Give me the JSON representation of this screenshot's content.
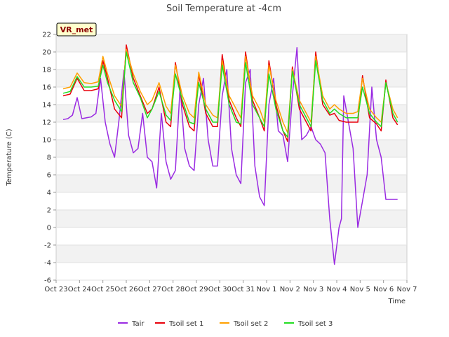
{
  "chart_data": {
    "type": "line",
    "title": "Soil Temperature at -4cm",
    "xlabel": "Time",
    "ylabel": "Temperature (C)",
    "badge": "VR_met",
    "ylim": [
      -6,
      22
    ],
    "yticks": [
      -6,
      -4,
      -2,
      0,
      2,
      4,
      6,
      8,
      10,
      12,
      14,
      16,
      18,
      20,
      22
    ],
    "xlim": [
      0,
      15
    ],
    "xticks": [
      0,
      1,
      2,
      3,
      4,
      5,
      6,
      7,
      8,
      9,
      10,
      11,
      12,
      13,
      14,
      15
    ],
    "xtick_labels": [
      "Oct 23",
      "Oct 24",
      "Oct 25",
      "Oct 26",
      "Oct 27",
      "Oct 28",
      "Oct 29",
      "Oct 30",
      "Oct 31",
      "Nov 1",
      "Nov 2",
      "Nov 3",
      "Nov 4",
      "Nov 5",
      "Nov 6",
      "Nov 7"
    ],
    "grid": "horizontal bands",
    "legend_position": "bottom",
    "series": [
      {
        "name": "Tair",
        "color": "#9a2be2",
        "x": [
          0.3,
          0.5,
          0.7,
          0.9,
          1.1,
          1.3,
          1.5,
          1.7,
          1.9,
          2.1,
          2.3,
          2.5,
          2.7,
          2.9,
          3.0,
          3.1,
          3.3,
          3.5,
          3.7,
          3.9,
          4.1,
          4.3,
          4.5,
          4.7,
          4.9,
          5.1,
          5.3,
          5.5,
          5.7,
          5.9,
          6.1,
          6.3,
          6.5,
          6.7,
          6.9,
          7.1,
          7.3,
          7.5,
          7.7,
          7.9,
          8.1,
          8.3,
          8.5,
          8.7,
          8.9,
          9.1,
          9.3,
          9.5,
          9.7,
          9.9,
          10.1,
          10.3,
          10.5,
          10.7,
          10.9,
          11.1,
          11.3,
          11.5,
          11.7,
          11.9,
          12.1,
          12.2,
          12.3,
          12.7,
          12.9,
          13.1,
          13.3,
          13.5,
          13.7,
          13.9,
          14.1,
          14.3,
          14.5,
          14.6
        ],
        "values": [
          12.3,
          12.4,
          12.8,
          14.8,
          12.4,
          12.5,
          12.6,
          13.0,
          17.0,
          12.0,
          9.5,
          8.0,
          12.5,
          17.9,
          14.0,
          10.5,
          8.5,
          9.0,
          13.0,
          8.0,
          7.5,
          4.5,
          13.0,
          7.5,
          5.5,
          6.5,
          16.0,
          9.0,
          7.0,
          6.5,
          14.0,
          17.0,
          10.0,
          7.0,
          7.0,
          15.0,
          18.0,
          9.0,
          6.0,
          5.0,
          16.5,
          18.0,
          7.0,
          3.5,
          2.5,
          14.0,
          17.0,
          11.0,
          10.5,
          7.5,
          15.0,
          20.5,
          10.0,
          10.5,
          11.5,
          10.0,
          9.5,
          8.5,
          1.0,
          -4.2,
          0.0,
          1.0,
          15.0,
          9.0,
          0.0,
          3.0,
          6.0,
          16.0,
          10.0,
          8.0,
          3.2,
          3.2,
          3.2,
          3.2
        ]
      },
      {
        "name": "Tsoil set 1",
        "color": "#e8000b",
        "x": [
          0.3,
          0.6,
          0.9,
          1.2,
          1.5,
          1.8,
          2.0,
          2.2,
          2.5,
          2.8,
          3.0,
          3.3,
          3.6,
          3.9,
          4.1,
          4.4,
          4.7,
          4.9,
          5.1,
          5.4,
          5.7,
          5.9,
          6.1,
          6.4,
          6.7,
          6.9,
          7.1,
          7.4,
          7.7,
          7.9,
          8.1,
          8.4,
          8.7,
          8.9,
          9.1,
          9.4,
          9.7,
          9.9,
          10.1,
          10.4,
          10.7,
          10.9,
          11.1,
          11.4,
          11.7,
          11.9,
          12.1,
          12.4,
          12.7,
          12.9,
          13.1,
          13.4,
          13.7,
          13.9,
          14.1,
          14.4,
          14.6
        ],
        "values": [
          15.0,
          15.2,
          17.0,
          15.6,
          15.6,
          15.8,
          19.0,
          17.0,
          13.5,
          12.5,
          20.8,
          17.0,
          15.0,
          13.0,
          13.5,
          16.0,
          12.0,
          11.5,
          18.8,
          14.0,
          11.5,
          11.0,
          17.5,
          13.0,
          11.5,
          11.5,
          19.7,
          14.5,
          12.5,
          11.5,
          20.0,
          14.5,
          12.5,
          11.0,
          19.0,
          14.0,
          11.0,
          9.8,
          18.3,
          13.5,
          12.0,
          11.0,
          20.0,
          14.0,
          12.8,
          13.0,
          12.2,
          12.0,
          12.0,
          12.0,
          17.3,
          12.5,
          11.8,
          11.0,
          16.8,
          12.5,
          11.7
        ]
      },
      {
        "name": "Tsoil set 2",
        "color": "#ffa000",
        "x": [
          0.3,
          0.6,
          0.9,
          1.2,
          1.5,
          1.8,
          2.0,
          2.2,
          2.5,
          2.8,
          3.0,
          3.3,
          3.6,
          3.9,
          4.1,
          4.4,
          4.7,
          4.9,
          5.1,
          5.4,
          5.7,
          5.9,
          6.1,
          6.4,
          6.7,
          6.9,
          7.1,
          7.4,
          7.7,
          7.9,
          8.1,
          8.4,
          8.7,
          8.9,
          9.1,
          9.4,
          9.7,
          9.9,
          10.1,
          10.4,
          10.7,
          10.9,
          11.1,
          11.4,
          11.7,
          11.9,
          12.1,
          12.4,
          12.7,
          12.9,
          13.1,
          13.4,
          13.7,
          13.9,
          14.1,
          14.4,
          14.6
        ],
        "values": [
          15.8,
          16.0,
          17.6,
          16.5,
          16.4,
          16.6,
          19.5,
          17.5,
          15.0,
          13.8,
          20.3,
          17.5,
          15.5,
          14.0,
          14.5,
          16.5,
          13.8,
          13.0,
          18.5,
          15.0,
          13.0,
          12.5,
          17.7,
          14.0,
          12.8,
          12.5,
          19.0,
          15.0,
          13.5,
          12.5,
          19.5,
          15.0,
          13.5,
          12.0,
          18.5,
          14.5,
          12.0,
          10.8,
          18.0,
          14.5,
          13.0,
          12.0,
          19.5,
          15.0,
          13.5,
          14.0,
          13.5,
          13.0,
          13.0,
          13.2,
          17.0,
          13.5,
          12.5,
          12.0,
          16.5,
          13.5,
          12.5
        ]
      },
      {
        "name": "Tsoil set 3",
        "color": "#22dd22",
        "x": [
          0.3,
          0.6,
          0.9,
          1.2,
          1.5,
          1.8,
          2.0,
          2.2,
          2.5,
          2.8,
          3.0,
          3.3,
          3.6,
          3.9,
          4.1,
          4.4,
          4.7,
          4.9,
          5.1,
          5.4,
          5.7,
          5.9,
          6.1,
          6.4,
          6.7,
          6.9,
          7.1,
          7.4,
          7.7,
          7.9,
          8.1,
          8.4,
          8.7,
          8.9,
          9.1,
          9.4,
          9.7,
          9.9,
          10.1,
          10.4,
          10.7,
          10.9,
          11.1,
          11.4,
          11.7,
          11.9,
          12.1,
          12.4,
          12.7,
          12.9,
          13.1,
          13.4,
          13.7,
          13.9,
          14.1,
          14.4,
          14.6
        ],
        "values": [
          15.3,
          15.5,
          17.2,
          16.0,
          16.0,
          16.1,
          18.5,
          16.5,
          14.5,
          13.2,
          20.0,
          16.5,
          14.8,
          12.5,
          13.5,
          15.5,
          12.8,
          12.2,
          17.5,
          14.5,
          12.0,
          11.8,
          16.5,
          13.5,
          12.0,
          12.0,
          18.5,
          14.0,
          12.0,
          11.8,
          18.8,
          14.0,
          12.5,
          11.5,
          17.5,
          13.5,
          11.0,
          10.3,
          17.8,
          14.0,
          12.5,
          11.5,
          19.0,
          14.5,
          13.0,
          13.5,
          13.0,
          12.5,
          12.5,
          12.5,
          16.0,
          13.0,
          12.0,
          11.5,
          16.5,
          13.0,
          12.0
        ]
      }
    ]
  }
}
